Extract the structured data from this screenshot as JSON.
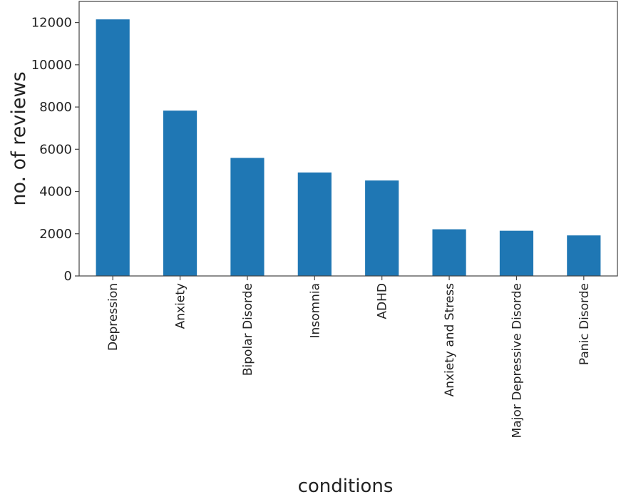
{
  "chart_data": {
    "type": "bar",
    "title": "",
    "xlabel": "conditions",
    "ylabel": "no. of reviews",
    "categories": [
      "Depression",
      "Anxiety",
      "Bipolar Disorde",
      "Insomnia",
      "ADHD",
      "Anxiety and Stress",
      "Major Depressive Disorde",
      "Panic Disorde"
    ],
    "values": [
      12150,
      7830,
      5590,
      4900,
      4520,
      2210,
      2140,
      1920
    ],
    "ylim": [
      0,
      13000
    ],
    "yticks": [
      0,
      2000,
      4000,
      6000,
      8000,
      10000,
      12000
    ],
    "grid": false,
    "legend": "none",
    "bar_color": "#1f77b4",
    "axis_color": "#444444"
  }
}
